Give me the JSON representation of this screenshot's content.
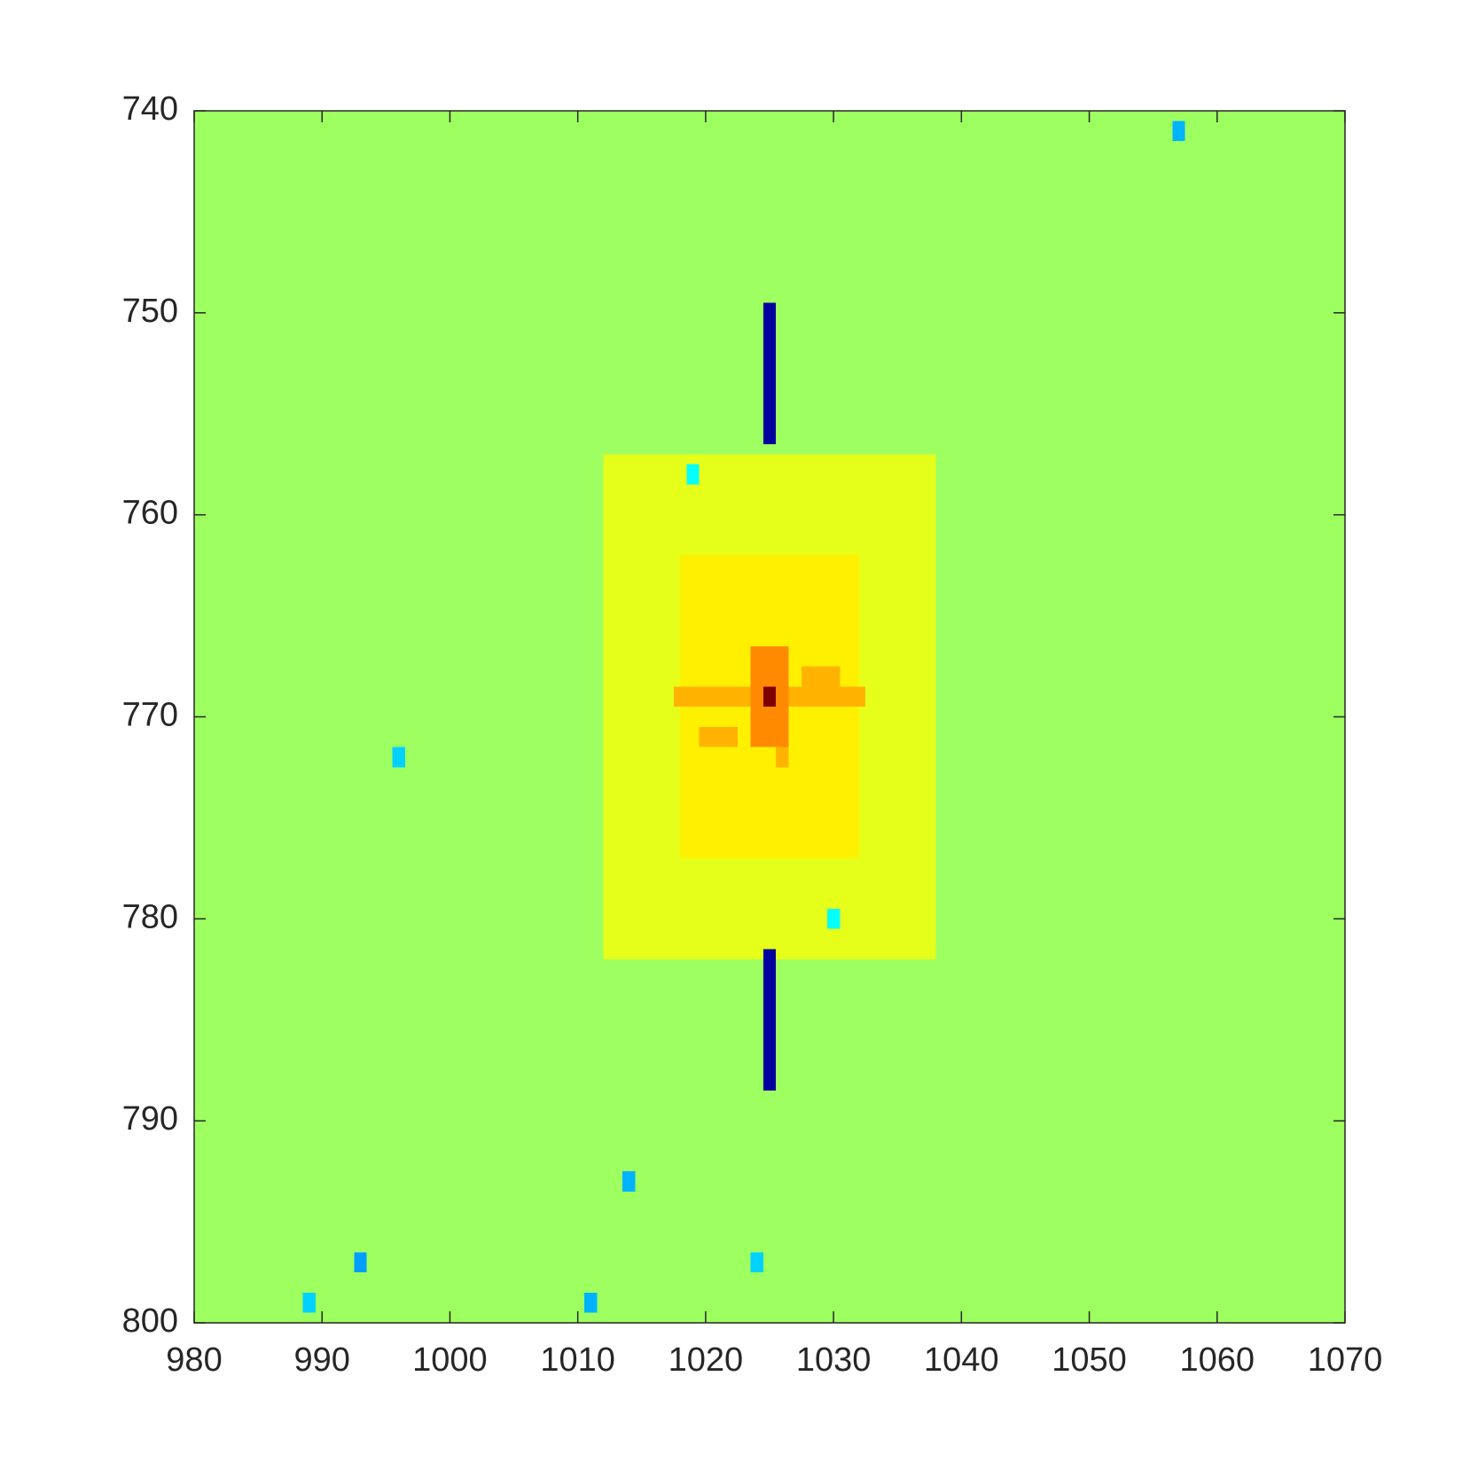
{
  "chart_data": {
    "type": "heatmap",
    "colormap": "jet",
    "clim": [
      0,
      1
    ],
    "xlim": [
      980,
      1070
    ],
    "ylim": [
      800,
      740
    ],
    "y_reversed": true,
    "xticks": [
      980,
      990,
      1000,
      1010,
      1020,
      1030,
      1040,
      1050,
      1060,
      1070
    ],
    "yticks": [
      740,
      750,
      760,
      770,
      780,
      790,
      800
    ],
    "regions": [
      {
        "x": [
          980,
          1070
        ],
        "y": [
          740,
          800
        ],
        "value": 0.53
      },
      {
        "x": [
          1012,
          1038
        ],
        "y": [
          757,
          782
        ],
        "value": 0.6
      },
      {
        "x": [
          1018,
          1032
        ],
        "y": [
          762,
          777
        ],
        "value": 0.64
      },
      {
        "x": [
          1017.5,
          1032.5
        ],
        "y": [
          768.5,
          769.5
        ],
        "value": 0.7
      },
      {
        "x": [
          1019.5,
          1022.5
        ],
        "y": [
          770.5,
          771.5
        ],
        "value": 0.7
      },
      {
        "x": [
          1027.5,
          1030.5
        ],
        "y": [
          767.5,
          768.5
        ],
        "value": 0.7
      },
      {
        "x": [
          1025.5,
          1026.5
        ],
        "y": [
          771.5,
          772.5
        ],
        "value": 0.7
      },
      {
        "x": [
          1023.5,
          1026.5
        ],
        "y": [
          766.5,
          771.5
        ],
        "value": 0.74
      },
      {
        "x": [
          1024.5,
          1025.5
        ],
        "y": [
          768.5,
          769.5
        ],
        "value": 1
      },
      {
        "x": [
          1024.5,
          1025.5
        ],
        "y": [
          749.5,
          756.5
        ],
        "value": 0.03
      },
      {
        "x": [
          1024.5,
          1025.5
        ],
        "y": [
          781.5,
          788.5
        ],
        "value": 0.03
      },
      {
        "x": [
          1056.5,
          1057.5
        ],
        "y": [
          740.5,
          741.5
        ],
        "value": 0.3
      },
      {
        "x": [
          1010.5,
          1011.5
        ],
        "y": [
          798.5,
          799.5
        ],
        "value": 0.3
      },
      {
        "x": [
          992.5,
          993.5
        ],
        "y": [
          796.5,
          797.5
        ],
        "value": 0.28
      },
      {
        "x": [
          995.5,
          996.5
        ],
        "y": [
          771.5,
          772.5
        ],
        "value": 0.33
      },
      {
        "x": [
          1018.5,
          1019.5
        ],
        "y": [
          757.5,
          758.5
        ],
        "value": 0.38
      },
      {
        "x": [
          1029.5,
          1030.5
        ],
        "y": [
          779.5,
          780.5
        ],
        "value": 0.38
      },
      {
        "x": [
          1013.5,
          1014.5
        ],
        "y": [
          792.5,
          793.5
        ],
        "value": 0.3
      },
      {
        "x": [
          1023.5,
          1024.5
        ],
        "y": [
          796.5,
          797.5
        ],
        "value": 0.33
      },
      {
        "x": [
          988.5,
          989.5
        ],
        "y": [
          798.5,
          799.5
        ],
        "value": 0.33
      }
    ]
  }
}
